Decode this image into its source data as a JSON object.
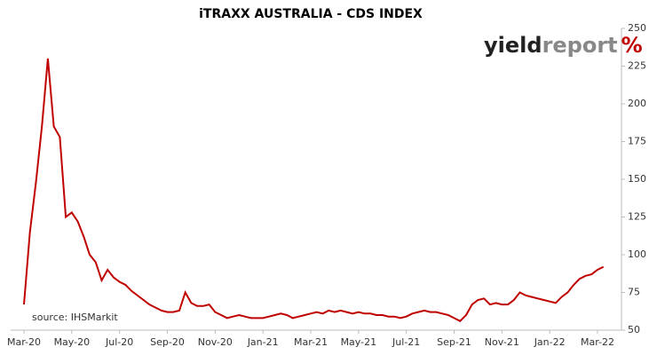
{
  "chart_data": {
    "type": "line",
    "title": "iTRAXX AUSTRALIA - CDS INDEX",
    "source": "source: IHSMarkit",
    "logo": {
      "main": "yield",
      "second": "report",
      "symbol": "%"
    },
    "categories": [
      "Mar-20",
      null,
      null,
      null,
      null,
      null,
      null,
      null,
      "May-20",
      null,
      null,
      null,
      null,
      null,
      null,
      null,
      "Jul-20",
      null,
      null,
      null,
      null,
      null,
      null,
      null,
      "Sep-20",
      null,
      null,
      null,
      null,
      null,
      null,
      null,
      "Nov-20",
      null,
      null,
      null,
      null,
      null,
      null,
      null,
      "Jan-21",
      null,
      null,
      null,
      null,
      null,
      null,
      null,
      "Mar-21",
      null,
      null,
      null,
      null,
      null,
      null,
      null,
      "May-21",
      null,
      null,
      null,
      null,
      null,
      null,
      null,
      "Jul-21",
      null,
      null,
      null,
      null,
      null,
      null,
      null,
      "Sep-21",
      null,
      null,
      null,
      null,
      null,
      null,
      null,
      "Nov-21",
      null,
      null,
      null,
      null,
      null,
      null,
      null,
      "Jan-22",
      null,
      null,
      null,
      null,
      null,
      null,
      null,
      "Mar-22",
      null
    ],
    "series": [
      {
        "name": "iTraxx Australia",
        "color": "#c00000",
        "values": [
          67,
          115,
          148,
          185,
          230,
          185,
          178,
          125,
          128,
          122,
          112,
          100,
          95,
          83,
          90,
          85,
          82,
          80,
          76,
          73,
          70,
          67,
          65,
          63,
          62,
          62,
          63,
          75,
          68,
          66,
          66,
          67,
          62,
          60,
          58,
          59,
          60,
          59,
          58,
          58,
          58,
          59,
          60,
          61,
          60,
          58,
          59,
          60,
          61,
          62,
          61,
          63,
          62,
          63,
          62,
          61,
          62,
          61,
          61,
          60,
          60,
          59,
          59,
          58,
          59,
          61,
          62,
          63,
          62,
          62,
          61,
          60,
          58,
          56,
          60,
          67,
          70,
          71,
          67,
          68,
          67,
          67,
          70,
          75,
          73,
          72,
          71,
          70,
          69,
          68,
          72,
          75,
          80,
          84,
          86,
          87,
          90,
          92
        ]
      }
    ],
    "ylim": [
      50,
      250
    ],
    "yticks": [
      50,
      75,
      100,
      125,
      150,
      175,
      200,
      225,
      250
    ],
    "y_axis_side": "right",
    "grid": false
  }
}
